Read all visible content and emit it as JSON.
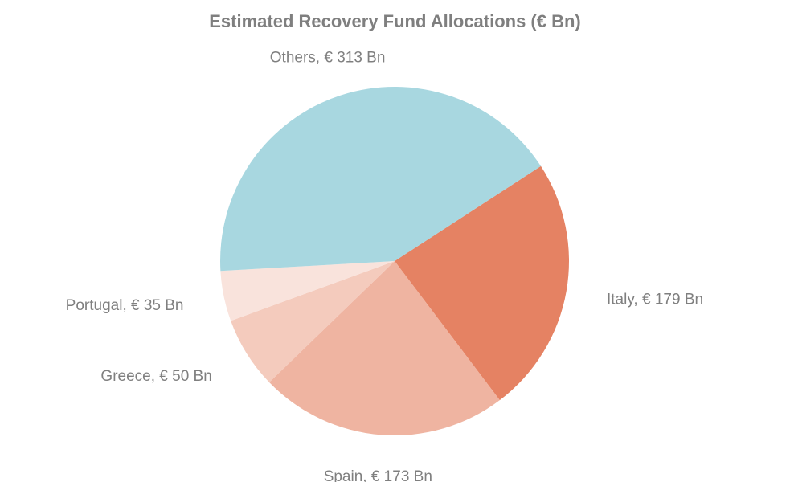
{
  "chart_data": {
    "type": "pie",
    "title": "Estimated Recovery Fund Allocations (€ Bn)",
    "unit": "€ Bn",
    "start_angle_deg": 57,
    "direction": "clockwise",
    "slices": [
      {
        "name": "Italy",
        "value": 179,
        "label": "Italy,  € 179 Bn",
        "color": "#e58263"
      },
      {
        "name": "Spain",
        "value": 173,
        "label": "Spain,  € 173 Bn",
        "color": "#efb4a1"
      },
      {
        "name": "Greece",
        "value": 50,
        "label": "Greece,  € 50 Bn",
        "color": "#f4cbbd"
      },
      {
        "name": "Portugal",
        "value": 35,
        "label": "Portugal,  € 35 Bn",
        "color": "#f9e3dc"
      },
      {
        "name": "Others",
        "value": 313,
        "label": "Others,  € 313 Bn",
        "color": "#a8d7e0"
      }
    ]
  }
}
